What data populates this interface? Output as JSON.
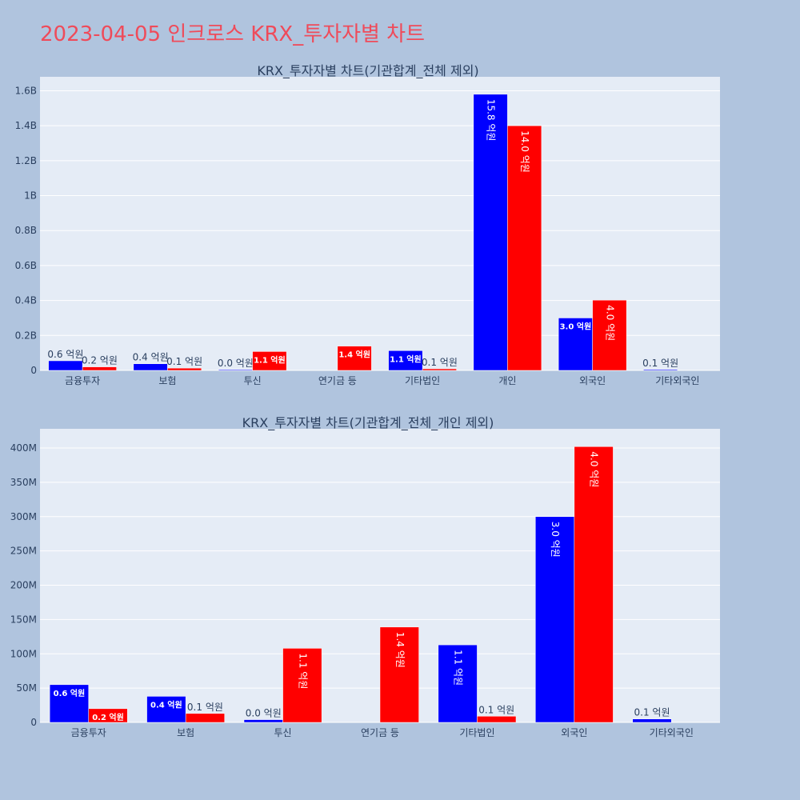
{
  "title": "2023-04-05 인크로스 KRX_투자자별 차트",
  "colors": {
    "buy": "#0000ff",
    "sell": "#ff0000"
  },
  "chart_data": [
    {
      "type": "bar",
      "title": "KRX_투자자별 차트(기관합계_전체 제외)",
      "categories": [
        "금융투자",
        "보험",
        "투신",
        "연기금 등",
        "기타법인",
        "개인",
        "외국인",
        "기타외국인"
      ],
      "series": [
        {
          "values": [
            55000000,
            38000000,
            4000000,
            null,
            113000000,
            1580000000,
            300000000,
            5000000
          ],
          "labels": [
            "0.6 억원",
            "0.4 억원",
            "0.0 억원",
            "",
            "1.1 억원",
            "15.8 억원",
            "3.0 억원",
            "0.1 억원"
          ]
        },
        {
          "values": [
            20000000,
            13000000,
            108000000,
            139000000,
            9000000,
            1400000000,
            402000000,
            null
          ],
          "labels": [
            "0.2 억원",
            "0.1 억원",
            "1.1 억원",
            "1.4 억원",
            "0.1 억원",
            "14.0 억원",
            "4.0 억원",
            ""
          ]
        }
      ],
      "ylim": [
        0,
        1680000000
      ],
      "yticks": [
        0,
        200000000,
        400000000,
        600000000,
        800000000,
        1000000000,
        1200000000,
        1400000000,
        1600000000
      ],
      "ytick_labels": [
        "0",
        "0.2B",
        "0.4B",
        "0.6B",
        "0.8B",
        "1B",
        "1.2B",
        "1.4B",
        "1.6B"
      ]
    },
    {
      "type": "bar",
      "title": "KRX_투자자별 차트(기관합계_전체_개인 제외)",
      "categories": [
        "금융투자",
        "보험",
        "투신",
        "연기금 등",
        "기타법인",
        "외국인",
        "기타외국인"
      ],
      "series": [
        {
          "values": [
            55000000,
            38000000,
            4000000,
            null,
            113000000,
            300000000,
            5000000
          ],
          "labels": [
            "0.6 억원",
            "0.4 억원",
            "0.0 억원",
            "",
            "1.1 억원",
            "3.0 억원",
            "0.1 억원"
          ]
        },
        {
          "values": [
            20000000,
            13000000,
            108000000,
            139000000,
            9000000,
            402000000,
            null
          ],
          "labels": [
            "0.2 억원",
            "0.1 억원",
            "1.1 억원",
            "1.4 억원",
            "0.1 억원",
            "4.0 억원",
            ""
          ]
        }
      ],
      "ylim": [
        0,
        428000000
      ],
      "yticks": [
        0,
        50000000,
        100000000,
        150000000,
        200000000,
        250000000,
        300000000,
        350000000,
        400000000
      ],
      "ytick_labels": [
        "0",
        "50M",
        "100M",
        "150M",
        "200M",
        "250M",
        "300M",
        "350M",
        "400M"
      ]
    }
  ]
}
